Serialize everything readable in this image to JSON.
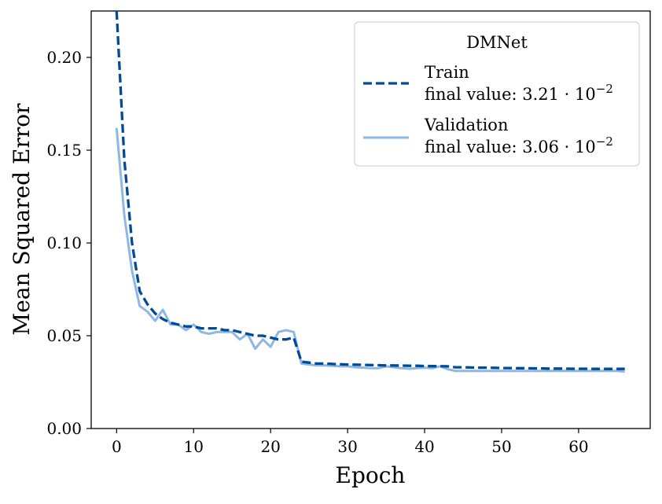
{
  "colors": {
    "train": "#004a98",
    "validation": "#8db8e3",
    "axis": "#000000",
    "legend_border": "#cccccc"
  },
  "chart_data": {
    "type": "line",
    "xlabel": "Epoch",
    "ylabel": "Mean Squared Error",
    "xlim": [
      -3.3,
      69.3
    ],
    "ylim": [
      0.0,
      0.225
    ],
    "xticks": [
      0,
      10,
      20,
      30,
      40,
      50,
      60
    ],
    "xtick_labels": [
      "0",
      "10",
      "20",
      "30",
      "40",
      "50",
      "60"
    ],
    "yticks": [
      0.0,
      0.05,
      0.1,
      0.15,
      0.2
    ],
    "ytick_labels": [
      "0.00",
      "0.05",
      "0.10",
      "0.15",
      "0.20"
    ],
    "grid": false,
    "legend": {
      "title": "DMNet",
      "placement": "top-right",
      "entries": [
        {
          "name": "Train",
          "detail_prefix": "final value: 3.21 · 10",
          "detail_exponent": "−2",
          "style": "dashed"
        },
        {
          "name": "Validation",
          "detail_prefix": "final value: 3.06 · 10",
          "detail_exponent": "−2",
          "style": "solid"
        }
      ]
    },
    "series": [
      {
        "name": "Train",
        "x": [
          0,
          1,
          2,
          3,
          4,
          5,
          6,
          7,
          8,
          9,
          10,
          11,
          12,
          13,
          14,
          15,
          16,
          17,
          18,
          19,
          20,
          21,
          22,
          23,
          24,
          25,
          26,
          27,
          28,
          29,
          30,
          31,
          32,
          33,
          34,
          35,
          36,
          37,
          38,
          39,
          40,
          41,
          42,
          43,
          44,
          45,
          46,
          47,
          48,
          49,
          50,
          51,
          52,
          53,
          54,
          55,
          56,
          57,
          58,
          59,
          60,
          61,
          62,
          63,
          64,
          65,
          66
        ],
        "y": [
          0.225,
          0.145,
          0.1,
          0.074,
          0.067,
          0.062,
          0.059,
          0.057,
          0.056,
          0.055,
          0.055,
          0.054,
          0.054,
          0.054,
          0.053,
          0.053,
          0.052,
          0.051,
          0.05,
          0.05,
          0.049,
          0.048,
          0.048,
          0.049,
          0.036,
          0.0355,
          0.035,
          0.035,
          0.0348,
          0.0346,
          0.0345,
          0.0344,
          0.0343,
          0.0342,
          0.0341,
          0.034,
          0.034,
          0.0339,
          0.0338,
          0.0338,
          0.0337,
          0.0336,
          0.0336,
          0.0335,
          0.033,
          0.033,
          0.0329,
          0.0328,
          0.0328,
          0.0327,
          0.0326,
          0.0326,
          0.0325,
          0.0325,
          0.0324,
          0.0324,
          0.0323,
          0.0323,
          0.0323,
          0.0322,
          0.0322,
          0.0322,
          0.0321,
          0.0321,
          0.0321,
          0.0321,
          0.0321
        ]
      },
      {
        "name": "Validation",
        "x": [
          0,
          1,
          2,
          3,
          4,
          5,
          6,
          7,
          8,
          9,
          10,
          11,
          12,
          13,
          14,
          15,
          16,
          17,
          18,
          19,
          20,
          21,
          22,
          23,
          24,
          25,
          26,
          27,
          28,
          29,
          30,
          31,
          32,
          33,
          34,
          35,
          36,
          37,
          38,
          39,
          40,
          41,
          42,
          43,
          44,
          45,
          46,
          47,
          48,
          49,
          50,
          51,
          52,
          53,
          54,
          55,
          56,
          57,
          58,
          59,
          60,
          61,
          62,
          63,
          64,
          65,
          66
        ],
        "y": [
          0.162,
          0.115,
          0.085,
          0.066,
          0.063,
          0.058,
          0.064,
          0.056,
          0.056,
          0.053,
          0.056,
          0.052,
          0.051,
          0.052,
          0.052,
          0.052,
          0.048,
          0.051,
          0.043,
          0.048,
          0.044,
          0.052,
          0.053,
          0.052,
          0.035,
          0.0345,
          0.034,
          0.034,
          0.0338,
          0.0335,
          0.0335,
          0.033,
          0.0328,
          0.0325,
          0.0325,
          0.0335,
          0.033,
          0.0325,
          0.0322,
          0.0325,
          0.0328,
          0.0325,
          0.0335,
          0.032,
          0.031,
          0.031,
          0.031,
          0.031,
          0.031,
          0.031,
          0.031,
          0.031,
          0.031,
          0.031,
          0.031,
          0.031,
          0.031,
          0.031,
          0.031,
          0.031,
          0.031,
          0.031,
          0.031,
          0.031,
          0.031,
          0.031,
          0.0306
        ]
      }
    ]
  }
}
